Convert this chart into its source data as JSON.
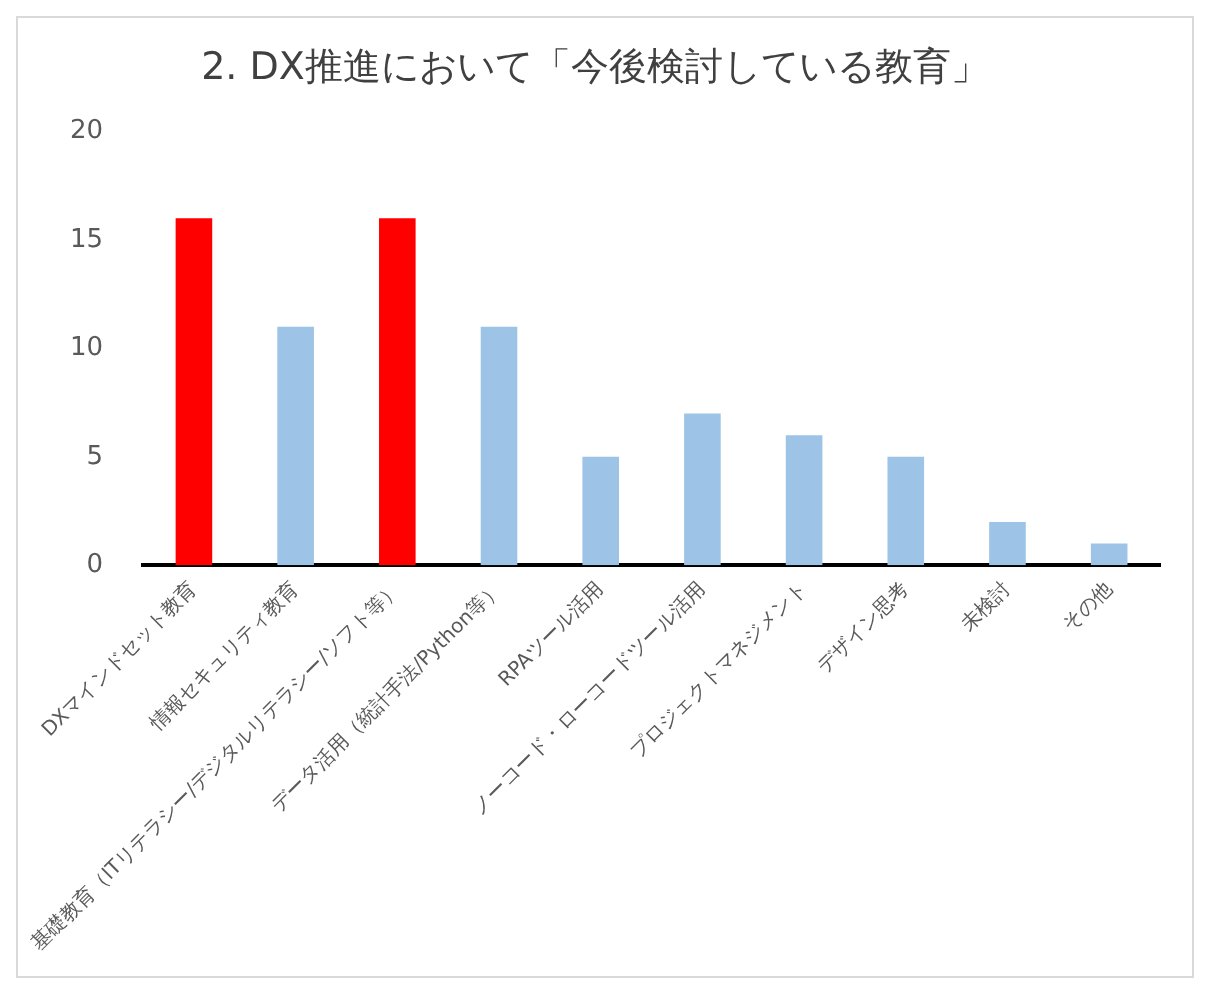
{
  "chart_data": {
    "type": "bar",
    "title": "2. DX推進において「今後検討している教育」",
    "categories": [
      "DXマインドセット教育",
      "情報セキュリティ教育",
      "基礎教育（ITリテラシー/デジタルリテラシー/ソフト等）",
      "データ活用（統計手法/Python等）",
      "RPAツール活用",
      "ノーコード・ローコードツール活用",
      "プロジェクトマネジメント",
      "デザイン思考",
      "未検討",
      "その他"
    ],
    "values": [
      16,
      11,
      16,
      11,
      5,
      7,
      6,
      5,
      2,
      1
    ],
    "colors": [
      "#ff0000",
      "#9dc3e6",
      "#ff0000",
      "#9dc3e6",
      "#9dc3e6",
      "#9dc3e6",
      "#9dc3e6",
      "#9dc3e6",
      "#9dc3e6",
      "#9dc3e6"
    ],
    "ylim": [
      0,
      20
    ],
    "yticks": [
      0,
      5,
      10,
      15,
      20
    ],
    "grid": false,
    "legend": false
  }
}
